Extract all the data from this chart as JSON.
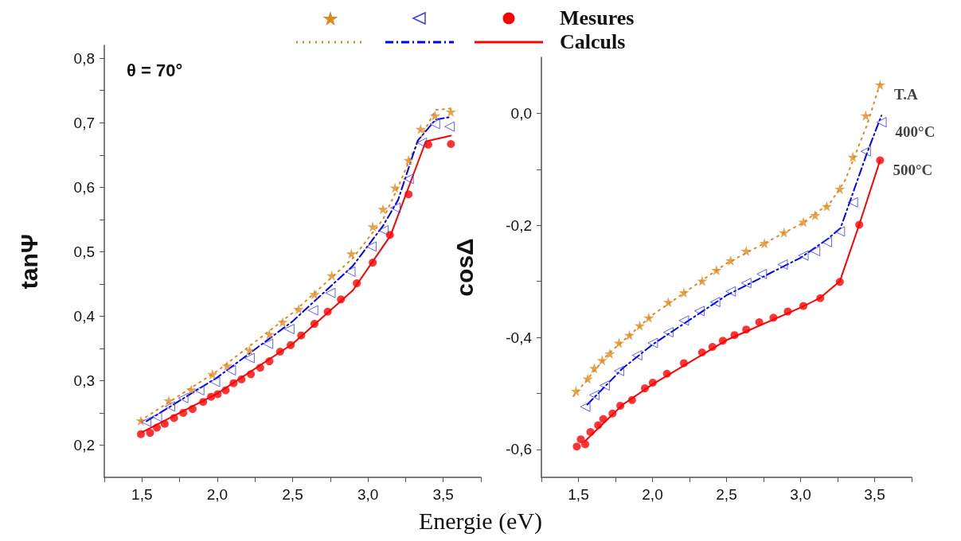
{
  "chart_data": [
    {
      "type": "scatter",
      "xlabel": "Energie (eV)",
      "ylabel": "tanΨ",
      "grid": false,
      "annotations": [
        "θ = 70°",
        "Mesures",
        "Calculs"
      ],
      "xlim": [
        1.25,
        3.75
      ],
      "xticks": [
        {
          "value": 1.25,
          "label": null
        },
        {
          "value": 1.5,
          "label": "1,5"
        },
        {
          "value": 1.75,
          "label": null
        },
        {
          "value": 2.0,
          "label": "2,0"
        },
        {
          "value": 2.25,
          "label": null
        },
        {
          "value": 2.5,
          "label": "2,5"
        },
        {
          "value": 2.75,
          "label": null
        },
        {
          "value": 3.0,
          "label": "3,0"
        },
        {
          "value": 3.25,
          "label": null
        },
        {
          "value": 3.5,
          "label": "3,5"
        },
        {
          "value": 3.75,
          "label": null
        }
      ],
      "ylim": [
        0.15,
        0.82
      ],
      "yticks": [
        {
          "value": 0.2,
          "label": "0,2"
        },
        {
          "value": 0.25,
          "label": null
        },
        {
          "value": 0.3,
          "label": "0,3"
        },
        {
          "value": 0.35,
          "label": null
        },
        {
          "value": 0.4,
          "label": "0,4"
        },
        {
          "value": 0.45,
          "label": null
        },
        {
          "value": 0.5,
          "label": "0,5"
        },
        {
          "value": 0.55,
          "label": null
        },
        {
          "value": 0.6,
          "label": "0,6"
        },
        {
          "value": 0.65,
          "label": null
        },
        {
          "value": 0.7,
          "label": "0,7"
        },
        {
          "value": 0.75,
          "label": null
        },
        {
          "value": 0.8,
          "label": "0,8"
        }
      ],
      "series": [
        {
          "type": "scatter",
          "color": "#e08a1e",
          "marker": "star",
          "x": [
            1.493,
            1.678,
            1.827,
            1.968,
            2.065,
            2.214,
            2.346,
            2.434,
            2.54,
            2.645,
            2.76,
            2.89,
            3.032,
            3.1,
            3.18,
            3.27,
            3.35,
            3.445,
            3.55
          ],
          "values": [
            0.238,
            0.269,
            0.286,
            0.31,
            0.323,
            0.347,
            0.372,
            0.391,
            0.411,
            0.434,
            0.463,
            0.497,
            0.539,
            0.566,
            0.599,
            0.642,
            0.69,
            0.711,
            0.717
          ]
        },
        {
          "type": "scatter",
          "color": "#3a3aff",
          "marker": "triangle",
          "x": [
            1.528,
            1.599,
            1.686,
            1.774,
            1.88,
            1.985,
            2.09,
            2.214,
            2.337,
            2.478,
            2.636,
            2.751,
            2.883,
            3.023,
            3.103,
            3.182,
            3.27,
            3.358,
            3.445,
            3.542
          ],
          "values": [
            0.236,
            0.244,
            0.26,
            0.273,
            0.285,
            0.298,
            0.316,
            0.335,
            0.357,
            0.38,
            0.409,
            0.436,
            0.469,
            0.508,
            0.533,
            0.568,
            0.613,
            0.669,
            0.698,
            0.694
          ]
        },
        {
          "type": "scatter",
          "color": "#ff0000",
          "marker": "circle",
          "x": [
            1.493,
            1.554,
            1.599,
            1.651,
            1.713,
            1.774,
            1.836,
            1.906,
            1.959,
            2.003,
            2.056,
            2.108,
            2.161,
            2.223,
            2.285,
            2.346,
            2.417,
            2.487,
            2.557,
            2.645,
            2.733,
            2.821,
            2.926,
            3.032,
            3.146,
            3.27,
            3.401,
            3.551
          ],
          "values": [
            0.217,
            0.219,
            0.227,
            0.233,
            0.242,
            0.25,
            0.256,
            0.267,
            0.275,
            0.279,
            0.285,
            0.296,
            0.302,
            0.31,
            0.32,
            0.33,
            0.345,
            0.355,
            0.37,
            0.388,
            0.407,
            0.426,
            0.451,
            0.483,
            0.526,
            0.589,
            0.666,
            0.667
          ]
        },
        {
          "type": "line",
          "color": "#e08a1e",
          "marker": "none",
          "line_style": "dotted",
          "x": [
            1.49,
            2.0,
            2.5,
            2.9,
            3.1,
            3.2,
            3.3,
            3.45,
            3.55
          ],
          "values": [
            0.238,
            0.315,
            0.405,
            0.49,
            0.55,
            0.6,
            0.655,
            0.72,
            0.722
          ]
        },
        {
          "type": "line",
          "color": "#0000ff",
          "marker": "none",
          "line_style": "dashed",
          "x": [
            1.53,
            2.0,
            2.5,
            2.9,
            3.1,
            3.2,
            3.33,
            3.45,
            3.55
          ],
          "values": [
            0.237,
            0.305,
            0.392,
            0.478,
            0.54,
            0.58,
            0.672,
            0.705,
            0.709
          ]
        },
        {
          "type": "line",
          "color": "#ff0000",
          "marker": "none",
          "line_style": "solid",
          "x": [
            1.5,
            2.0,
            2.5,
            2.9,
            3.1,
            3.15,
            3.384,
            3.551
          ],
          "values": [
            0.22,
            0.28,
            0.357,
            0.44,
            0.508,
            0.525,
            0.671,
            0.68
          ]
        }
      ]
    },
    {
      "type": "scatter",
      "ylabel": "cosΔ",
      "grid": false,
      "xlim": [
        1.25,
        3.75
      ],
      "xticks": [
        {
          "value": 1.25,
          "label": null
        },
        {
          "value": 1.5,
          "label": "1,5"
        },
        {
          "value": 1.75,
          "label": null
        },
        {
          "value": 2.0,
          "label": "2,0"
        },
        {
          "value": 2.25,
          "label": null
        },
        {
          "value": 2.5,
          "label": "2,5"
        },
        {
          "value": 2.75,
          "label": null
        },
        {
          "value": 3.0,
          "label": "3,0"
        },
        {
          "value": 3.25,
          "label": null
        },
        {
          "value": 3.5,
          "label": "3,5"
        },
        {
          "value": 3.75,
          "label": null
        }
      ],
      "ylim": [
        -0.65,
        0.1
      ],
      "yticks": [
        {
          "value": -0.6,
          "label": "-0,6"
        },
        {
          "value": -0.5,
          "label": null
        },
        {
          "value": -0.4,
          "label": "-0,4"
        },
        {
          "value": -0.3,
          "label": null
        },
        {
          "value": -0.2,
          "label": "-0,2"
        },
        {
          "value": -0.1,
          "label": null
        },
        {
          "value": 0.0,
          "label": "0,0"
        }
      ],
      "series": [
        {
          "name": "T.A",
          "type": "scatter",
          "color": "#e08a1e",
          "marker": "star",
          "x": [
            1.484,
            1.563,
            1.607,
            1.66,
            1.712,
            1.774,
            1.844,
            1.914,
            1.975,
            2.107,
            2.212,
            2.335,
            2.432,
            2.528,
            2.633,
            2.756,
            2.888,
            3.019,
            3.098,
            3.177,
            3.265,
            3.353,
            3.44,
            3.537
          ],
          "values": [
            -0.496,
            -0.474,
            -0.455,
            -0.441,
            -0.429,
            -0.41,
            -0.396,
            -0.379,
            -0.365,
            -0.337,
            -0.32,
            -0.299,
            -0.28,
            -0.263,
            -0.246,
            -0.232,
            -0.213,
            -0.194,
            -0.182,
            -0.166,
            -0.135,
            -0.078,
            -0.004,
            0.051
          ]
        },
        {
          "name": "400°C",
          "type": "scatter",
          "color": "#3a3aff",
          "marker": "triangle",
          "x": [
            1.546,
            1.607,
            1.677,
            1.774,
            1.896,
            2.002,
            2.107,
            2.212,
            2.317,
            2.423,
            2.528,
            2.633,
            2.738,
            2.879,
            3.019,
            3.098,
            3.177,
            3.265,
            3.353,
            3.44,
            3.546
          ],
          "values": [
            -0.524,
            -0.503,
            -0.486,
            -0.46,
            -0.432,
            -0.41,
            -0.391,
            -0.37,
            -0.353,
            -0.337,
            -0.318,
            -0.303,
            -0.287,
            -0.27,
            -0.254,
            -0.246,
            -0.23,
            -0.211,
            -0.159,
            -0.068,
            -0.016
          ]
        },
        {
          "name": "500°C",
          "type": "scatter",
          "color": "#ff0000",
          "marker": "circle",
          "x": [
            1.489,
            1.516,
            1.546,
            1.581,
            1.633,
            1.668,
            1.73,
            1.783,
            1.862,
            1.949,
            2.002,
            2.098,
            2.212,
            2.335,
            2.405,
            2.475,
            2.554,
            2.633,
            2.721,
            2.817,
            2.914,
            3.019,
            3.133,
            3.265,
            3.396,
            3.537
          ],
          "values": [
            -0.595,
            -0.582,
            -0.591,
            -0.569,
            -0.557,
            -0.546,
            -0.536,
            -0.522,
            -0.512,
            -0.491,
            -0.481,
            -0.465,
            -0.446,
            -0.427,
            -0.417,
            -0.406,
            -0.396,
            -0.386,
            -0.373,
            -0.365,
            -0.354,
            -0.344,
            -0.33,
            -0.301,
            -0.199,
            -0.084
          ]
        },
        {
          "type": "line",
          "color": "#e08a1e",
          "marker": "none",
          "line_style": "dotted",
          "x": [
            1.467,
            1.7,
            2.0,
            2.5,
            3.0,
            3.2,
            3.3,
            3.45,
            3.537
          ],
          "values": [
            -0.505,
            -0.43,
            -0.36,
            -0.268,
            -0.198,
            -0.16,
            -0.12,
            -0.02,
            0.053
          ]
        },
        {
          "type": "line",
          "color": "#0000ff",
          "marker": "none",
          "line_style": "dashed",
          "x": [
            1.56,
            1.8,
            2.0,
            2.5,
            3.0,
            3.18,
            3.27,
            3.45,
            3.546
          ],
          "values": [
            -0.52,
            -0.455,
            -0.413,
            -0.325,
            -0.258,
            -0.225,
            -0.205,
            -0.07,
            -0.004
          ]
        },
        {
          "type": "line",
          "color": "#ff0000",
          "marker": "none",
          "line_style": "solid",
          "x": [
            1.546,
            1.8,
            2.0,
            2.5,
            3.0,
            3.13,
            3.265,
            3.396,
            3.537
          ],
          "values": [
            -0.585,
            -0.52,
            -0.484,
            -0.405,
            -0.347,
            -0.33,
            -0.3,
            -0.199,
            -0.084
          ]
        }
      ]
    }
  ]
}
